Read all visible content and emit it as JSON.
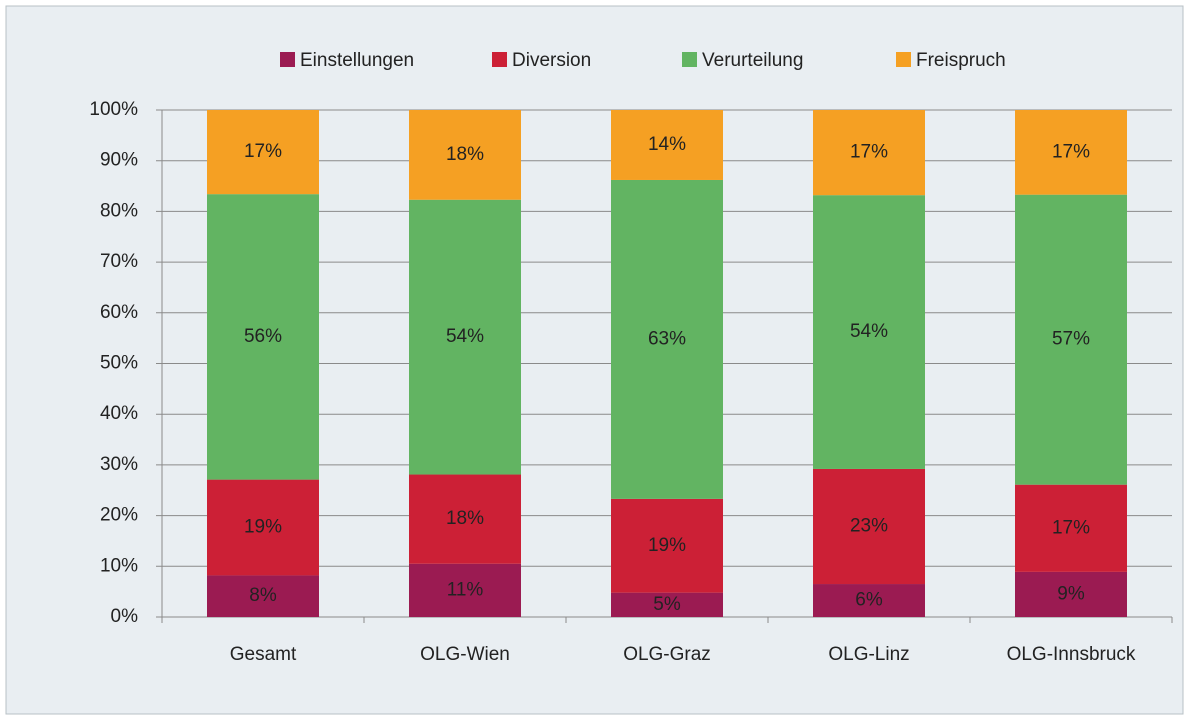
{
  "chart_data": {
    "type": "stacked_bar",
    "categories": [
      "Gesamt",
      "OLG-Wien",
      "OLG-Graz",
      "OLG-Linz",
      "OLG-Innsbruck"
    ],
    "series": [
      {
        "name": "Einstellungen",
        "color": "#9b1b52",
        "values": [
          8.2,
          10.5,
          4.8,
          6.5,
          8.9
        ],
        "value_labels": [
          "8%",
          "11%",
          "5%",
          "6%",
          "9%"
        ]
      },
      {
        "name": "Diversion",
        "color": "#cc2036",
        "values": [
          18.9,
          17.6,
          18.5,
          22.7,
          17.2
        ],
        "value_labels": [
          "19%",
          "18%",
          "19%",
          "23%",
          "17%"
        ]
      },
      {
        "name": "Verurteilung",
        "color": "#62b462",
        "values": [
          56.3,
          54.2,
          62.9,
          54.0,
          57.2
        ],
        "value_labels": [
          "56%",
          "54%",
          "63%",
          "54%",
          "57%"
        ]
      },
      {
        "name": "Freispruch",
        "color": "#f5a023",
        "values": [
          16.6,
          17.7,
          13.8,
          16.8,
          16.7
        ],
        "value_labels": [
          "17%",
          "18%",
          "14%",
          "17%",
          "17%"
        ]
      }
    ],
    "ylim": [
      0,
      100
    ],
    "yticks": [
      {
        "value": 0,
        "label": "0%"
      },
      {
        "value": 10,
        "label": "10%"
      },
      {
        "value": 20,
        "label": "20%"
      },
      {
        "value": 30,
        "label": "30%"
      },
      {
        "value": 40,
        "label": "40%"
      },
      {
        "value": 50,
        "label": "50%"
      },
      {
        "value": 60,
        "label": "60%"
      },
      {
        "value": 70,
        "label": "70%"
      },
      {
        "value": 80,
        "label": "80%"
      },
      {
        "value": 90,
        "label": "90%"
      },
      {
        "value": 100,
        "label": "100%"
      }
    ],
    "grid": true,
    "legend": "top"
  }
}
